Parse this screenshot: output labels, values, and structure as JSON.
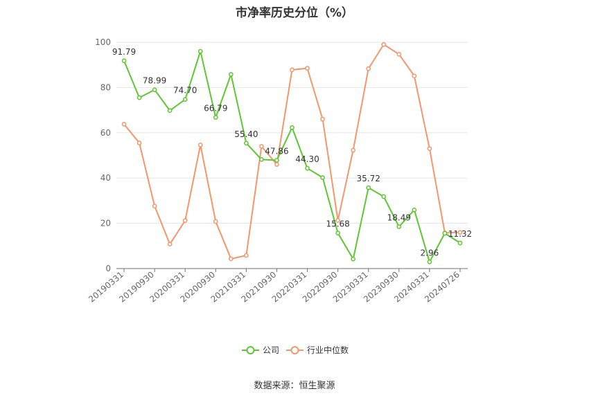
{
  "chart_data": {
    "type": "line",
    "title": "市净率历史分位（%）",
    "source": "数据来源：恒生聚源",
    "ylim": [
      0,
      100
    ],
    "y_ticks": [
      0,
      20,
      40,
      60,
      80,
      100
    ],
    "grid": true,
    "legend_position": "bottom-center",
    "x_tick_labels": [
      "20190331",
      "20190930",
      "20200331",
      "20200930",
      "20210331",
      "20210930",
      "20220331",
      "20220930",
      "20230331",
      "20230930",
      "20240331",
      "20240726"
    ],
    "x": [
      "20190331",
      "20190630",
      "20190930",
      "20191231",
      "20200331",
      "20200630",
      "20200930",
      "20201231",
      "20210331",
      "20210630",
      "20210930",
      "20211231",
      "20220331",
      "20220630",
      "20220930",
      "20221231",
      "20230331",
      "20230630",
      "20230930",
      "20231231",
      "20240331",
      "20240630",
      "20240726"
    ],
    "series": [
      {
        "name": "公司",
        "color": "#5cc72f",
        "values": [
          91.79,
          75.5,
          78.99,
          69.8,
          74.7,
          96.0,
          66.79,
          85.8,
          55.4,
          48.2,
          47.86,
          62.3,
          44.3,
          40.2,
          15.68,
          4.2,
          35.72,
          31.8,
          18.49,
          25.9,
          2.96,
          15.6,
          11.32
        ],
        "labels": {
          "0": "91.79",
          "2": "78.99",
          "4": "74.70",
          "6": "66.79",
          "8": "55.40",
          "10": "47.86",
          "12": "44.30",
          "14": "15.68",
          "16": "35.72",
          "18": "18.49",
          "20": "2.96",
          "22": "11.32"
        }
      },
      {
        "name": "行业中位数",
        "color": "#f5956a",
        "values": [
          63.8,
          55.5,
          27.6,
          10.8,
          21.2,
          54.6,
          20.8,
          4.3,
          5.8,
          54.0,
          46.0,
          87.8,
          88.5,
          66.0,
          21.3,
          52.3,
          88.3,
          99.0,
          94.7,
          85.1,
          53.0,
          15.8,
          16.0
        ]
      }
    ]
  }
}
